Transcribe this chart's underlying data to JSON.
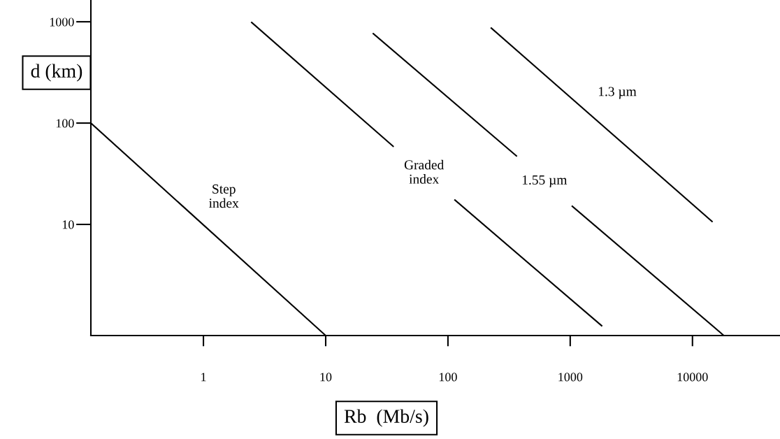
{
  "chart_data": {
    "type": "line",
    "xlabel": "Rb  (Mb/s)",
    "ylabel": "d (km)",
    "log": "xy",
    "xlim": [
      0.12,
      52000
    ],
    "ylim": [
      0.8,
      1640
    ],
    "xticks": [
      1,
      10,
      100,
      1000,
      10000
    ],
    "yticks": [
      10,
      100,
      1000
    ],
    "grid": false,
    "legend": false,
    "marker": "none",
    "line_style": "solid",
    "series": [
      {
        "name": "Step\nindex",
        "color": "#000000",
        "x": [
          0.12,
          10
        ],
        "values": [
          100,
          0.8
        ]
      },
      {
        "name": "Graded\nindex",
        "color": "#000000",
        "x": [
          2.48,
          35.6,
          64,
          114,
          1808
        ],
        "values": [
          984,
          59,
          null,
          17.4,
          1.0
        ]
      },
      {
        "name": "1.55 µm",
        "color": "#000000",
        "x": [
          24.5,
          363,
          600,
          1040,
          18070
        ],
        "values": [
          763,
          47.4,
          null,
          15.1,
          0.8
        ]
      },
      {
        "name": "1.3 µm",
        "color": "#000000",
        "x": [
          226,
          14460
        ],
        "values": [
          867,
          10.7
        ]
      }
    ]
  }
}
